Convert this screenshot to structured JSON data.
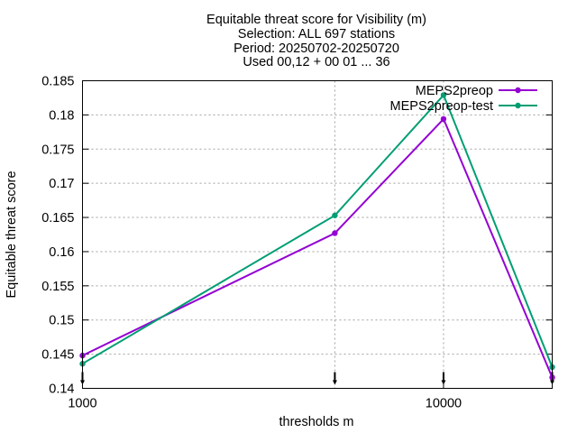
{
  "chart_data": {
    "type": "line",
    "title_lines": [
      "Equitable threat score  for Visibility (m)",
      "Selection: ALL    697 stations",
      "Period: 20250702-20250720",
      "Used 00,12 + 00 01 ... 36"
    ],
    "xlabel": "thresholds m",
    "ylabel": "Equitable threat score",
    "x_scale": "log",
    "xlim": [
      1000,
      20000
    ],
    "ylim": [
      0.14,
      0.185
    ],
    "x_tick_values": [
      1000,
      10000
    ],
    "x_tick_labels": [
      "1000",
      "10000"
    ],
    "y_tick_values": [
      0.14,
      0.145,
      0.15,
      0.155,
      0.16,
      0.165,
      0.17,
      0.175,
      0.18,
      0.185
    ],
    "y_tick_labels": [
      "0.14",
      "0.145",
      "0.15",
      "0.155",
      "0.16",
      "0.165",
      "0.17",
      "0.175",
      "0.18",
      "0.185"
    ],
    "grid": true,
    "legend_position": "top-right",
    "x": [
      1000,
      5000,
      10000,
      20000
    ],
    "series": [
      {
        "name": "MEPS2preop",
        "color": "#9400d3",
        "values": [
          0.1448,
          0.1627,
          0.1794,
          0.1416
        ]
      },
      {
        "name": "MEPS2preop-test",
        "color": "#009e73",
        "values": [
          0.1436,
          0.1653,
          0.1829,
          0.1431
        ]
      }
    ]
  }
}
